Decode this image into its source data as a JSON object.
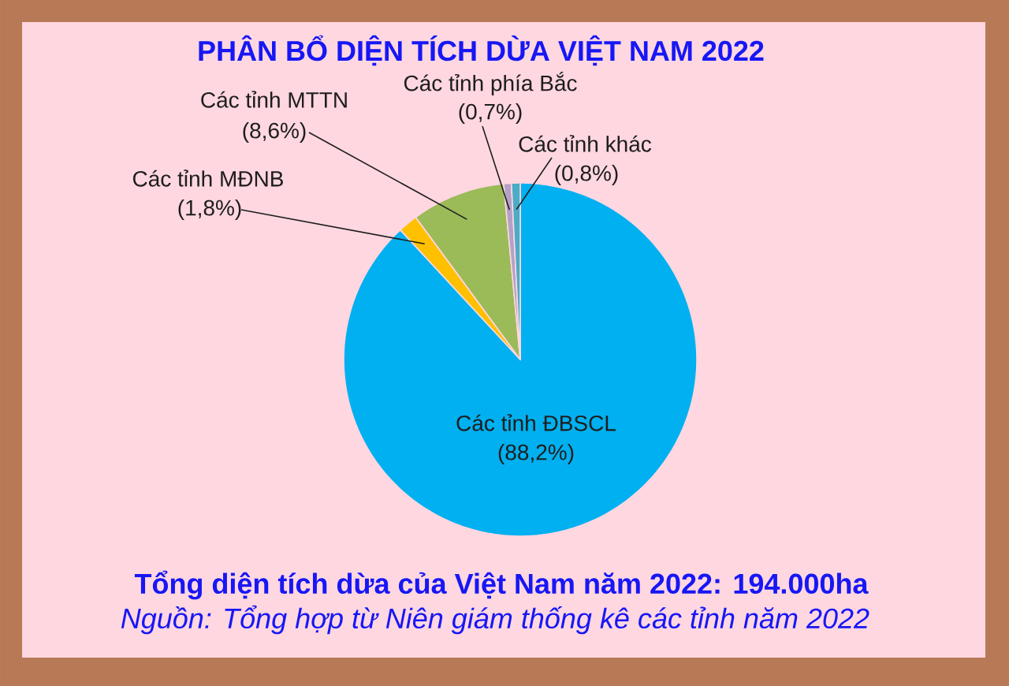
{
  "chart_data": {
    "type": "pie",
    "title": "PHÂN BỔ DIỆN TÍCH DỪA VIỆT NAM 2022",
    "categories": [
      "Các tỉnh ĐBSCL",
      "Các tỉnh MĐNB",
      "Các tỉnh MTTN",
      "Các tỉnh phía Bắc",
      "Các tỉnh khác"
    ],
    "values": [
      88.2,
      1.8,
      8.6,
      0.7,
      0.8
    ],
    "value_labels": [
      "(88,2%)",
      "(1,8%)",
      "(8,6%)",
      "(0,7%)",
      "(0,8%)"
    ],
    "colors": [
      "#00b0f0",
      "#ffc000",
      "#9bbb59",
      "#b3a2c7",
      "#4bacc6"
    ],
    "annotations": [
      "Tổng diện tích dừa của Việt Nam năm 2022: 194.000ha",
      "Nguồn: Tổng hợp từ Niên giám thống kê các tỉnh năm 2022"
    ]
  }
}
